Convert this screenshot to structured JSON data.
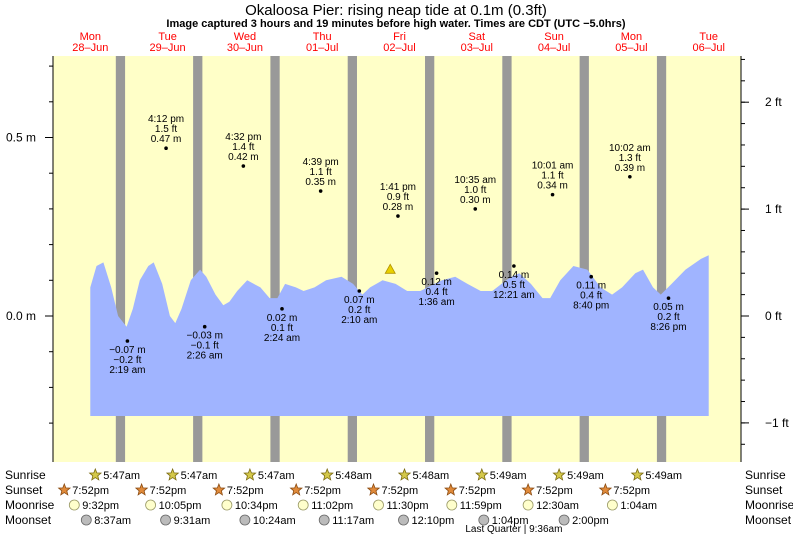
{
  "chart_data": {
    "type": "area",
    "title": "Okaloosa Pier: rising  neap tide at 0.1m (0.3ft)",
    "subtitle": "Image captured 3 hours and 19 minutes before high water. Times are CDT (UTC −5.0hrs)",
    "colors": {
      "tide_fill": "#a0b4ff",
      "day": "#ffffc8",
      "night": "#999999",
      "header_date": "#ff0000",
      "marker": "#e8d000"
    },
    "days": [
      {
        "dow": "Mon",
        "date": "28–Jun"
      },
      {
        "dow": "Tue",
        "date": "29–Jun"
      },
      {
        "dow": "Wed",
        "date": "30–Jun"
      },
      {
        "dow": "Thu",
        "date": "01–Jul"
      },
      {
        "dow": "Fri",
        "date": "02–Jul"
      },
      {
        "dow": "Sat",
        "date": "03–Jul"
      },
      {
        "dow": "Sun",
        "date": "04–Jul"
      },
      {
        "dow": "Mon",
        "date": "05–Jul"
      },
      {
        "dow": "Tue",
        "date": "06–Jul"
      }
    ],
    "y_left": {
      "unit": "m",
      "ticks": [
        {
          "value": 0.5,
          "label": "0.5 m"
        },
        {
          "value": 0.0,
          "label": "0.0 m"
        }
      ]
    },
    "y_right": {
      "unit": "ft",
      "ticks": [
        {
          "value": 2,
          "label": "2 ft"
        },
        {
          "value": 1,
          "label": "1 ft"
        },
        {
          "value": 0,
          "label": "0 ft"
        },
        {
          "value": -1,
          "label": "−1 ft"
        }
      ]
    },
    "tide_curve": [
      [
        1.0,
        0.08
      ],
      [
        1.08,
        0.14
      ],
      [
        1.17,
        0.15
      ],
      [
        1.27,
        0.08
      ],
      [
        1.36,
        0.0
      ],
      [
        1.47,
        -0.03
      ],
      [
        1.55,
        0.02
      ],
      [
        1.64,
        0.1
      ],
      [
        1.75,
        0.14
      ],
      [
        1.82,
        0.15
      ],
      [
        1.93,
        0.09
      ],
      [
        2.03,
        0.0
      ],
      [
        2.1,
        -0.02
      ],
      [
        2.18,
        0.02
      ],
      [
        2.3,
        0.1
      ],
      [
        2.42,
        0.13
      ],
      [
        2.5,
        0.11
      ],
      [
        2.62,
        0.06
      ],
      [
        2.72,
        0.03
      ],
      [
        2.8,
        0.04
      ],
      [
        2.9,
        0.07
      ],
      [
        3.03,
        0.1
      ],
      [
        3.2,
        0.08
      ],
      [
        3.32,
        0.05
      ],
      [
        3.42,
        0.05
      ],
      [
        3.52,
        0.09
      ],
      [
        3.66,
        0.08
      ],
      [
        3.76,
        0.07
      ],
      [
        3.9,
        0.08
      ],
      [
        4.05,
        0.1
      ],
      [
        4.25,
        0.11
      ],
      [
        4.4,
        0.09
      ],
      [
        4.52,
        0.06
      ],
      [
        4.62,
        0.08
      ],
      [
        4.78,
        0.1
      ],
      [
        4.95,
        0.09
      ],
      [
        5.1,
        0.07
      ],
      [
        5.27,
        0.07
      ],
      [
        5.45,
        0.09
      ],
      [
        5.55,
        0.1
      ],
      [
        5.72,
        0.11
      ],
      [
        5.88,
        0.09
      ],
      [
        6.05,
        0.07
      ],
      [
        6.2,
        0.07
      ],
      [
        6.38,
        0.1
      ],
      [
        6.45,
        0.11
      ],
      [
        6.55,
        0.12
      ],
      [
        6.7,
        0.09
      ],
      [
        6.85,
        0.05
      ],
      [
        6.95,
        0.05
      ],
      [
        7.08,
        0.1
      ],
      [
        7.25,
        0.14
      ],
      [
        7.43,
        0.13
      ],
      [
        7.6,
        0.08
      ],
      [
        7.75,
        0.06
      ],
      [
        7.88,
        0.08
      ],
      [
        8.05,
        0.12
      ],
      [
        8.15,
        0.13
      ],
      [
        8.28,
        0.08
      ],
      [
        8.38,
        0.06
      ],
      [
        8.52,
        0.09
      ],
      [
        8.7,
        0.13
      ],
      [
        8.9,
        0.16
      ],
      [
        9.0,
        0.17
      ]
    ],
    "tide_bottom": -0.28,
    "now": {
      "day": 4.88,
      "height_m": 0.1
    },
    "nights": [
      [
        1.33,
        1.45
      ],
      [
        2.33,
        2.45
      ],
      [
        3.33,
        3.45
      ],
      [
        4.33,
        4.45
      ],
      [
        5.33,
        5.45
      ],
      [
        6.33,
        6.45
      ],
      [
        7.33,
        7.45
      ],
      [
        8.33,
        8.45
      ]
    ],
    "highs": [
      {
        "day": 1.98,
        "m": 0.47,
        "time": "4:12 pm",
        "ft": "1.5 ft",
        "height": "0.47 m"
      },
      {
        "day": 2.98,
        "m": 0.42,
        "time": "4:32 pm",
        "ft": "1.4 ft",
        "height": "0.42 m"
      },
      {
        "day": 3.98,
        "m": 0.35,
        "time": "4:39 pm",
        "ft": "1.1 ft",
        "height": "0.35 m"
      },
      {
        "day": 4.98,
        "m": 0.28,
        "time": "1:41 pm",
        "ft": "0.9 ft",
        "height": "0.28 m"
      },
      {
        "day": 5.98,
        "m": 0.3,
        "time": "10:35 am",
        "ft": "1.0 ft",
        "height": "0.30 m"
      },
      {
        "day": 6.98,
        "m": 0.34,
        "time": "10:01 am",
        "ft": "1.1 ft",
        "height": "0.34 m"
      },
      {
        "day": 7.98,
        "m": 0.39,
        "time": "10:02 am",
        "ft": "1.3 ft",
        "height": "0.39 m"
      }
    ],
    "lows": [
      {
        "day": 1.48,
        "m": -0.07,
        "time": "2:19 am",
        "ft": "−0.2 ft",
        "height": "−0.07 m"
      },
      {
        "day": 2.48,
        "m": -0.03,
        "time": "2:26 am",
        "ft": "−0.1 ft",
        "height": "−0.03 m"
      },
      {
        "day": 3.48,
        "m": 0.02,
        "time": "2:24 am",
        "ft": "0.1 ft",
        "height": "0.02 m"
      },
      {
        "day": 4.48,
        "m": 0.07,
        "time": "2:10 am",
        "ft": "0.2 ft",
        "height": "0.07 m"
      },
      {
        "day": 5.48,
        "m": 0.12,
        "time": "1:36 am",
        "ft": "0.4 ft",
        "height": "0.12 m"
      },
      {
        "day": 6.48,
        "m": 0.14,
        "time": "12:21 am",
        "ft": "0.5 ft",
        "height": "0.14 m"
      },
      {
        "day": 7.48,
        "m": 0.11,
        "time": "8:40 pm",
        "ft": "0.4 ft",
        "height": "0.11 m"
      },
      {
        "day": 8.48,
        "m": 0.05,
        "time": "8:26 pm",
        "ft": "0.2 ft",
        "height": "0.05 m"
      }
    ],
    "row_labels": [
      "Sunrise",
      "Sunset",
      "Moonrise",
      "Moonset"
    ],
    "sunrise": [
      "5:47am",
      "5:47am",
      "5:47am",
      "5:48am",
      "5:48am",
      "5:49am",
      "5:49am",
      "5:49am"
    ],
    "sunset": [
      "7:52pm",
      "7:52pm",
      "7:52pm",
      "7:52pm",
      "7:52pm",
      "7:52pm",
      "7:52pm",
      "7:52pm"
    ],
    "moonrise": [
      "9:32pm",
      "10:05pm",
      "10:34pm",
      "11:02pm",
      "11:30pm",
      "11:59pm",
      "12:30am",
      "1:04am"
    ],
    "moonset": [
      "8:37am",
      "9:31am",
      "10:24am",
      "11:17am",
      "12:10pm",
      "1:04pm",
      "2:00pm"
    ],
    "moon_phase": "Last Quarter | 9:36am"
  }
}
